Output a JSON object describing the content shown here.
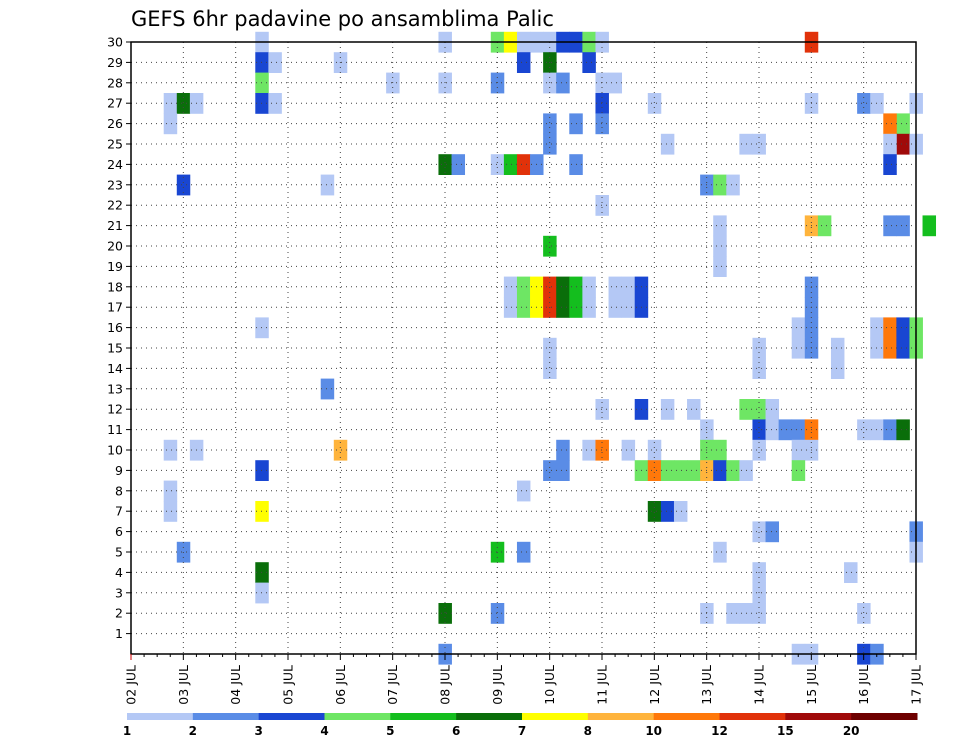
{
  "chart_data": {
    "type": "heatmap",
    "title": "GEFS 6hr padavine po ansamblima Palic",
    "xlabel": "",
    "ylabel": "",
    "x_tick_labels": [
      "02 JUL",
      "03 JUL",
      "04 JUL",
      "05 JUL",
      "06 JUL",
      "07 JUL",
      "08 JUL",
      "09 JUL",
      "10 JUL",
      "11 JUL",
      "12 JUL",
      "13 JUL",
      "14 JUL",
      "15 JUL",
      "16 JUL",
      "17 JUL"
    ],
    "x_range_days": [
      0,
      15
    ],
    "y_tick_labels": [
      "1",
      "2",
      "3",
      "4",
      "5",
      "6",
      "7",
      "8",
      "9",
      "10",
      "11",
      "12",
      "13",
      "14",
      "15",
      "16",
      "17",
      "18",
      "19",
      "20",
      "21",
      "22",
      "23",
      "24",
      "25",
      "26",
      "27",
      "28",
      "29",
      "30"
    ],
    "y_range": [
      0,
      30
    ],
    "grid": true,
    "colorbar": {
      "position": "bottom",
      "labels": [
        "1",
        "2",
        "3",
        "4",
        "5",
        "6",
        "7",
        "8",
        "10",
        "12",
        "15",
        "20"
      ],
      "colors": [
        "#b4c8f5",
        "#5a8ce6",
        "#1946d2",
        "#6ee664",
        "#14be1e",
        "#0a6e0a",
        "#ffff00",
        "#ffb43c",
        "#ff780a",
        "#e1320a",
        "#a00a0a",
        "#6e0000"
      ]
    },
    "cells": [
      [
        30,
        2.5,
        0
      ],
      [
        30,
        6,
        0
      ],
      [
        30,
        7,
        3
      ],
      [
        30,
        7.25,
        6
      ],
      [
        30,
        7.5,
        0
      ],
      [
        30,
        7.75,
        0
      ],
      [
        30,
        8,
        0
      ],
      [
        30,
        8.25,
        2
      ],
      [
        30,
        8.5,
        2
      ],
      [
        30,
        8.75,
        3
      ],
      [
        30,
        9,
        0
      ],
      [
        30,
        13,
        9
      ],
      [
        29,
        2.5,
        2
      ],
      [
        29,
        2.75,
        0
      ],
      [
        29,
        4,
        0
      ],
      [
        29,
        7.5,
        2
      ],
      [
        29,
        8,
        5
      ],
      [
        29,
        8.75,
        2
      ],
      [
        28,
        2.5,
        3
      ],
      [
        28,
        5,
        0
      ],
      [
        28,
        6,
        0
      ],
      [
        28,
        7,
        1
      ],
      [
        28,
        8,
        0
      ],
      [
        28,
        8.25,
        1
      ],
      [
        28,
        9,
        0
      ],
      [
        28,
        9.25,
        0
      ],
      [
        27,
        0.75,
        0
      ],
      [
        27,
        1,
        5
      ],
      [
        27,
        1.25,
        0
      ],
      [
        27,
        2.5,
        2
      ],
      [
        27,
        2.75,
        0
      ],
      [
        27,
        9,
        2
      ],
      [
        27,
        10,
        0
      ],
      [
        27,
        13,
        0
      ],
      [
        27,
        14,
        1
      ],
      [
        27,
        14.25,
        0
      ],
      [
        27,
        15,
        0
      ],
      [
        26,
        0.75,
        0
      ],
      [
        26,
        8,
        1
      ],
      [
        26,
        8.5,
        1
      ],
      [
        26,
        9,
        1
      ],
      [
        26,
        14.75,
        3
      ],
      [
        26,
        14.5,
        8
      ],
      [
        25,
        8,
        1
      ],
      [
        25,
        10.25,
        0
      ],
      [
        25,
        11.75,
        0
      ],
      [
        25,
        12,
        0
      ],
      [
        25,
        14.75,
        10
      ],
      [
        25,
        15,
        0
      ],
      [
        25,
        14.5,
        0
      ],
      [
        24,
        6,
        5
      ],
      [
        24,
        6.25,
        1
      ],
      [
        24,
        7,
        0
      ],
      [
        24,
        7.25,
        4
      ],
      [
        24,
        7.5,
        9
      ],
      [
        24,
        7.75,
        1
      ],
      [
        24,
        8.5,
        1
      ],
      [
        24,
        14.5,
        2
      ],
      [
        23,
        1,
        2
      ],
      [
        23,
        3.75,
        0
      ],
      [
        23,
        11,
        1
      ],
      [
        23,
        11.25,
        3
      ],
      [
        23,
        11.5,
        0
      ],
      [
        22,
        9,
        0
      ],
      [
        21,
        11.25,
        0
      ],
      [
        21,
        13,
        7
      ],
      [
        21,
        13.25,
        3
      ],
      [
        21,
        14.5,
        1
      ],
      [
        21,
        14.75,
        1
      ],
      [
        21,
        15.25,
        4
      ],
      [
        20,
        11.25,
        0
      ],
      [
        20,
        8,
        4
      ],
      [
        19,
        11.25,
        0
      ],
      [
        18,
        7.25,
        0
      ],
      [
        18,
        7.5,
        3
      ],
      [
        18,
        7.75,
        6
      ],
      [
        18,
        8,
        9
      ],
      [
        18,
        8.25,
        5
      ],
      [
        18,
        8.5,
        4
      ],
      [
        18,
        8.75,
        0
      ],
      [
        18,
        9.25,
        0
      ],
      [
        18,
        9.5,
        0
      ],
      [
        18,
        9.75,
        2
      ],
      [
        18,
        13,
        1
      ],
      [
        17,
        7.25,
        0
      ],
      [
        17,
        7.5,
        3
      ],
      [
        17,
        7.75,
        6
      ],
      [
        17,
        8,
        9
      ],
      [
        17,
        8.25,
        5
      ],
      [
        17,
        8.5,
        4
      ],
      [
        17,
        8.75,
        0
      ],
      [
        17,
        9.25,
        0
      ],
      [
        17,
        9.5,
        0
      ],
      [
        17,
        9.75,
        2
      ],
      [
        17,
        13,
        1
      ],
      [
        16,
        2.5,
        0
      ],
      [
        16,
        12.75,
        0
      ],
      [
        16,
        13,
        1
      ],
      [
        16,
        14.25,
        0
      ],
      [
        16,
        14.5,
        8
      ],
      [
        16,
        14.75,
        2
      ],
      [
        16,
        15,
        3
      ],
      [
        15,
        8,
        0
      ],
      [
        15,
        12,
        0
      ],
      [
        15,
        12.75,
        0
      ],
      [
        15,
        13,
        1
      ],
      [
        15,
        13.5,
        0
      ],
      [
        15,
        14.25,
        0
      ],
      [
        15,
        14.5,
        8
      ],
      [
        15,
        14.75,
        2
      ],
      [
        15,
        15,
        3
      ],
      [
        14,
        8,
        0
      ],
      [
        14,
        12,
        0
      ],
      [
        14,
        13.5,
        0
      ],
      [
        13,
        3.75,
        1
      ],
      [
        12,
        9,
        0
      ],
      [
        12,
        9.75,
        2
      ],
      [
        12,
        10.25,
        0
      ],
      [
        12,
        10.75,
        0
      ],
      [
        12,
        11.75,
        3
      ],
      [
        12,
        12,
        3
      ],
      [
        12,
        12.25,
        0
      ],
      [
        11,
        11,
        0
      ],
      [
        11,
        12,
        2
      ],
      [
        11,
        12.25,
        0
      ],
      [
        11,
        12.5,
        1
      ],
      [
        11,
        12.75,
        1
      ],
      [
        11,
        13,
        8
      ],
      [
        11,
        14,
        0
      ],
      [
        11,
        14.25,
        0
      ],
      [
        11,
        14.5,
        1
      ],
      [
        11,
        14.75,
        5
      ],
      [
        10,
        0.75,
        0
      ],
      [
        10,
        1.25,
        0
      ],
      [
        10,
        4,
        7
      ],
      [
        10,
        8.25,
        1
      ],
      [
        10,
        8.75,
        0
      ],
      [
        10,
        9,
        8
      ],
      [
        10,
        9.5,
        0
      ],
      [
        10,
        10,
        0
      ],
      [
        10,
        11,
        3
      ],
      [
        10,
        11.25,
        3
      ],
      [
        10,
        12,
        0
      ],
      [
        10,
        12.75,
        0
      ],
      [
        10,
        13,
        0
      ],
      [
        9,
        2.5,
        2
      ],
      [
        9,
        8,
        1
      ],
      [
        9,
        8.25,
        1
      ],
      [
        9,
        9.75,
        3
      ],
      [
        9,
        10,
        8
      ],
      [
        9,
        10.25,
        3
      ],
      [
        9,
        10.5,
        3
      ],
      [
        9,
        10.75,
        3
      ],
      [
        9,
        11,
        7
      ],
      [
        9,
        11.25,
        2
      ],
      [
        9,
        11.5,
        3
      ],
      [
        9,
        11.75,
        0
      ],
      [
        9,
        12.75,
        3
      ],
      [
        8,
        0.75,
        0
      ],
      [
        8,
        7.5,
        0
      ],
      [
        7,
        0.75,
        0
      ],
      [
        7,
        2.5,
        6
      ],
      [
        7,
        10,
        5
      ],
      [
        7,
        10.25,
        2
      ],
      [
        7,
        10.5,
        0
      ],
      [
        6,
        12,
        0
      ],
      [
        6,
        12.25,
        1
      ],
      [
        6,
        15,
        1
      ],
      [
        5,
        1,
        1
      ],
      [
        5,
        7,
        4
      ],
      [
        5,
        7.5,
        1
      ],
      [
        5,
        11.25,
        0
      ],
      [
        5,
        15,
        0
      ],
      [
        4,
        2.5,
        5
      ],
      [
        4,
        12,
        0
      ],
      [
        4,
        13.75,
        0
      ],
      [
        3,
        2.5,
        0
      ],
      [
        3,
        12,
        0
      ],
      [
        2,
        6,
        5
      ],
      [
        2,
        7,
        1
      ],
      [
        2,
        11,
        0
      ],
      [
        2,
        11.5,
        0
      ],
      [
        2,
        11.75,
        0
      ],
      [
        2,
        12,
        0
      ],
      [
        2,
        14,
        0
      ],
      [
        0,
        6,
        1
      ],
      [
        0,
        12.75,
        0
      ],
      [
        0,
        13,
        0
      ],
      [
        0,
        14,
        2
      ],
      [
        0,
        14.25,
        1
      ]
    ]
  }
}
